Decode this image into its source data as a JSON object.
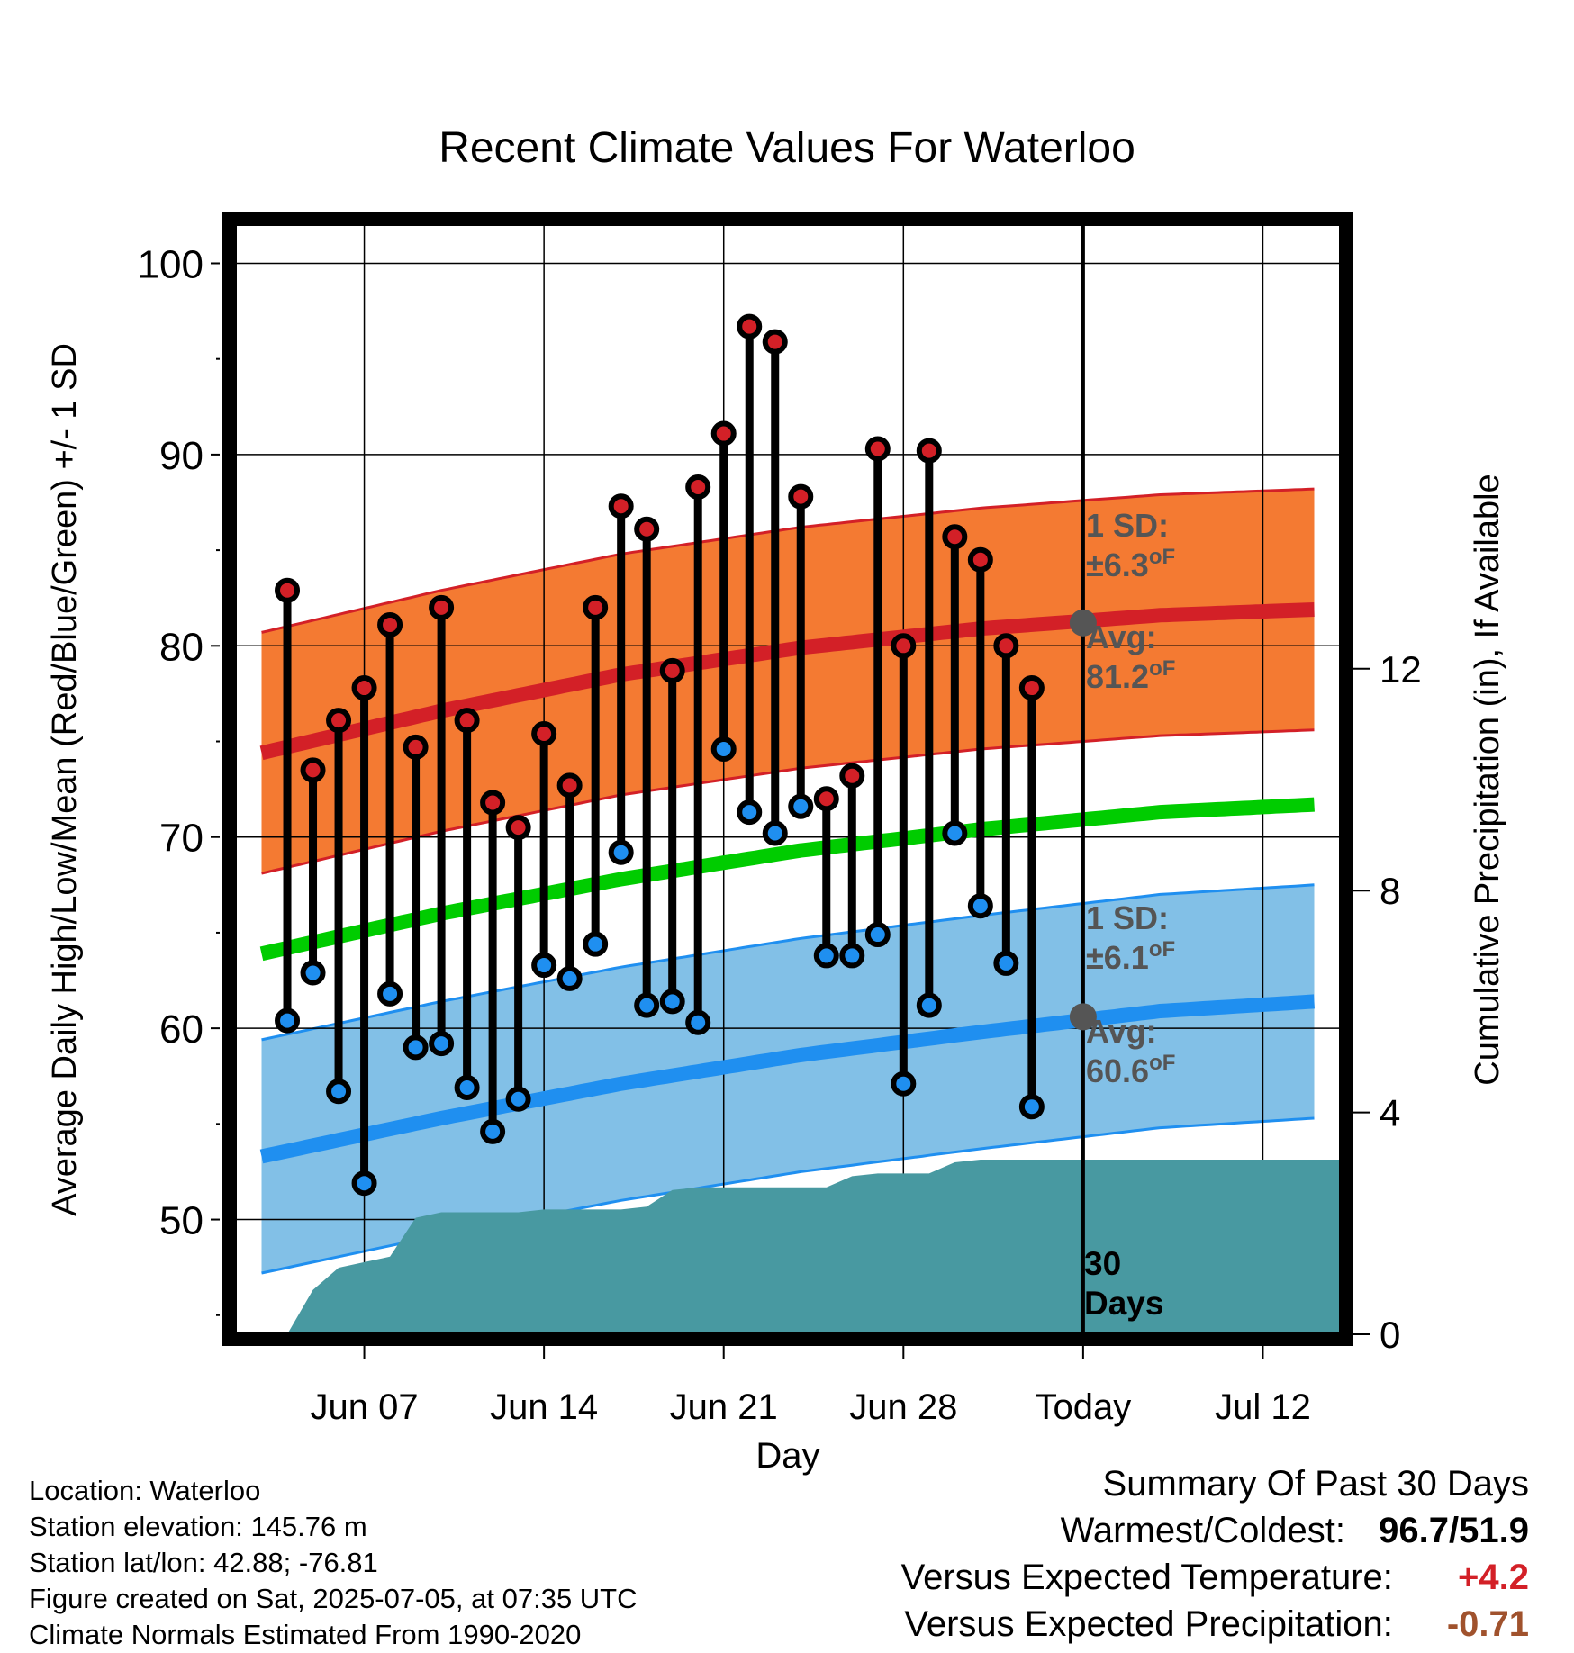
{
  "chart_data": {
    "type": "line",
    "title": "Recent Climate Values For Waterloo",
    "xlabel": "Day",
    "ylabel": "Average Daily High/Low/Mean (Red/Blue/Green) +/- 1 SD",
    "y2label": "Cumulative Precipitation (in), If Available",
    "ylim": [
      44,
      102
    ],
    "y_ticks": [
      50,
      60,
      70,
      80,
      90,
      100
    ],
    "y2lim": [
      0,
      20
    ],
    "y2_ticks": [
      0,
      4,
      8,
      12
    ],
    "xlim": [
      "2025-06-02",
      "2025-07-15"
    ],
    "x_ticks": [
      {
        "date": "2025-06-07",
        "label": "Jun 07"
      },
      {
        "date": "2025-06-14",
        "label": "Jun 14"
      },
      {
        "date": "2025-06-21",
        "label": "Jun 21"
      },
      {
        "date": "2025-06-28",
        "label": "Jun 28"
      },
      {
        "date": "2025-07-05",
        "label": "Today"
      },
      {
        "date": "2025-07-12",
        "label": "Jul 12"
      }
    ],
    "grid": true,
    "today": "2025-07-05",
    "today_label": "30 Days",
    "normals": {
      "dates": [
        "2025-06-03",
        "2025-06-10",
        "2025-06-17",
        "2025-06-24",
        "2025-07-01",
        "2025-07-08",
        "2025-07-14"
      ],
      "high_avg": [
        74.4,
        76.6,
        78.5,
        79.9,
        80.9,
        81.6,
        81.9
      ],
      "high_sd": 6.3,
      "low_avg": [
        53.3,
        55.3,
        57.1,
        58.6,
        59.8,
        60.9,
        61.4
      ],
      "low_sd": 6.1,
      "mean_avg": [
        63.9,
        66.0,
        67.8,
        69.3,
        70.4,
        71.3,
        71.7
      ]
    },
    "daily": {
      "dates": [
        "2025-06-04",
        "2025-06-05",
        "2025-06-06",
        "2025-06-07",
        "2025-06-08",
        "2025-06-09",
        "2025-06-10",
        "2025-06-11",
        "2025-06-12",
        "2025-06-13",
        "2025-06-14",
        "2025-06-15",
        "2025-06-16",
        "2025-06-17",
        "2025-06-18",
        "2025-06-19",
        "2025-06-20",
        "2025-06-21",
        "2025-06-22",
        "2025-06-23",
        "2025-06-24",
        "2025-06-25",
        "2025-06-26",
        "2025-06-27",
        "2025-06-28",
        "2025-06-29",
        "2025-06-30",
        "2025-07-01",
        "2025-07-02",
        "2025-07-03",
        "2025-07-04"
      ],
      "high": [
        82.9,
        73.5,
        76.1,
        77.8,
        81.1,
        74.7,
        82.0,
        76.1,
        71.8,
        70.5,
        75.4,
        72.7,
        82.0,
        87.3,
        86.1,
        78.7,
        88.3,
        91.1,
        96.7,
        95.9,
        87.8,
        72.0,
        73.2,
        90.3,
        80.0,
        90.2,
        85.7,
        84.5,
        80.0,
        77.8,
        null
      ],
      "low": [
        60.4,
        62.9,
        56.7,
        51.9,
        61.8,
        59.0,
        59.2,
        56.9,
        54.6,
        56.3,
        63.3,
        62.6,
        64.4,
        69.2,
        61.2,
        61.4,
        60.3,
        74.6,
        71.3,
        70.2,
        71.6,
        63.8,
        63.8,
        64.9,
        57.1,
        61.2,
        70.2,
        66.4,
        63.4,
        55.9,
        null
      ]
    },
    "precip_cumulative": {
      "dates": [
        "2025-06-04",
        "2025-06-05",
        "2025-06-06",
        "2025-06-07",
        "2025-06-08",
        "2025-06-09",
        "2025-06-10",
        "2025-06-11",
        "2025-06-12",
        "2025-06-13",
        "2025-06-14",
        "2025-06-15",
        "2025-06-16",
        "2025-06-17",
        "2025-06-18",
        "2025-06-19",
        "2025-06-20",
        "2025-06-21",
        "2025-06-22",
        "2025-06-23",
        "2025-06-24",
        "2025-06-25",
        "2025-06-26",
        "2025-06-27",
        "2025-06-28",
        "2025-06-29",
        "2025-06-30",
        "2025-07-01",
        "2025-07-02",
        "2025-07-03",
        "2025-07-04",
        "2025-07-15"
      ],
      "values": [
        0.0,
        0.8,
        1.2,
        1.3,
        1.4,
        2.1,
        2.2,
        2.2,
        2.2,
        2.2,
        2.25,
        2.25,
        2.25,
        2.25,
        2.3,
        2.6,
        2.65,
        2.65,
        2.65,
        2.65,
        2.65,
        2.65,
        2.85,
        2.9,
        2.9,
        2.9,
        3.1,
        3.15,
        3.15,
        3.15,
        3.15,
        3.15
      ]
    },
    "annotations": {
      "high_sd": "1 SD: ±6.3°F",
      "high_avg": "Avg: 81.2°F",
      "low_sd": "1 SD: ±6.1°F",
      "low_avg": "Avg: 60.6°F",
      "today_high_avg": 81.2,
      "today_low_avg": 60.6
    },
    "colors": {
      "high_band": "#f47a32",
      "high_line": "#d32027",
      "mean_line": "#00cc00",
      "low_band": "#82c0e7",
      "low_line": "#1f8ff0",
      "precip": "#4899a1",
      "high_dot": "#d32027",
      "low_dot": "#1f8ff0",
      "annotation": "#555555"
    }
  },
  "labels": {
    "title": "Recent Climate Values For Waterloo",
    "xlabel": "Day",
    "ylabel": "Average Daily High/Low/Mean (Red/Blue/Green) +/- 1 SD",
    "y2label": "Cumulative Precipitation (in), If Available",
    "high_sd_line1": "1 SD:",
    "high_sd_line2": "±6.3",
    "high_avg_line1": "Avg:",
    "high_avg_line2": "81.2",
    "low_sd_line1": "1 SD:",
    "low_sd_line2": "±6.1",
    "low_avg_line1": "Avg:",
    "low_avg_line2": "60.6",
    "deg_unit": "oF",
    "days_line1": "30",
    "days_line2": "Days"
  },
  "footer": {
    "location": "Location: Waterloo",
    "elevation": "Station elevation: 145.76 m",
    "latlon": "Station lat/lon: 42.88; -76.81",
    "created": "Figure created on Sat, 2025-07-05, at 07:35 UTC",
    "normals": "Climate Normals Estimated From 1990-2020"
  },
  "summary": {
    "title": "Summary Of Past 30 Days",
    "warmest_label": "Warmest/Coldest:",
    "warmest_value": "96.7",
    "slash": "/",
    "coldest_value": "51.9",
    "temp_label": "Versus Expected Temperature:",
    "temp_value": "+4.2",
    "temp_color": "#d32027",
    "precip_label": "Versus Expected Precipitation:",
    "precip_value": "-0.71",
    "precip_color": "#a0522d"
  }
}
